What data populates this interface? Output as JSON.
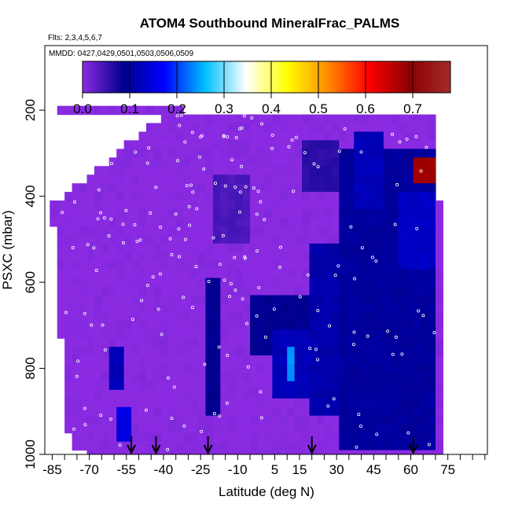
{
  "chart_data": {
    "type": "heatmap",
    "title": "ATOM4 Southbound MineralFrac_PALMS",
    "notes": [
      "Flts: 2,3,4,5,6,7",
      "MMDD: 0427,0429,0501,0503,0506,0509"
    ],
    "xlabel": "Latitude (deg N)",
    "ylabel": "PSXC (mbar)",
    "xlim": [
      -88,
      91
    ],
    "ylim": [
      1000,
      50
    ],
    "x_ticks_labeled": [
      -85,
      -70,
      -55,
      -40,
      -25,
      -10,
      5,
      15,
      30,
      45,
      60,
      75
    ],
    "x_tick_step": 5,
    "y_ticks": [
      200,
      400,
      600,
      800,
      1000
    ],
    "colorbar": {
      "min": 0.0,
      "max": 0.78,
      "ticks": [
        0.0,
        0.1,
        0.2,
        0.3,
        0.4,
        0.5,
        0.6,
        0.7
      ],
      "tick_labels": [
        "0.0",
        "0.1",
        "0.2",
        "0.3",
        "0.4",
        "0.5",
        "0.6",
        "0.7"
      ],
      "colors": [
        "#8a2be2",
        "#00008b",
        "#0000ff",
        "#00bfff",
        "#ffffff",
        "#ffff00",
        "#ff8c00",
        "#ff0000",
        "#8b0000",
        "#a52a2a"
      ]
    },
    "background_value": 0.0,
    "domain_edges": [
      {
        "p": 200,
        "x0": -84,
        "x1": -33
      },
      {
        "p": 180,
        "x0": -33,
        "x1": 70
      },
      {
        "p": 420,
        "x0": -85,
        "x1": 72
      },
      {
        "p": 600,
        "x0": -83,
        "x1": 73
      },
      {
        "p": 850,
        "x0": -80,
        "x1": 73
      },
      {
        "p": 980,
        "x0": -78,
        "x1": 72
      },
      {
        "p": 1000,
        "x0": -71,
        "x1": 72
      }
    ],
    "features": [
      {
        "x": [
          32,
          70
        ],
        "p": [
          300,
          980
        ],
        "value": 0.1
      },
      {
        "x": [
          38,
          50
        ],
        "p": [
          260,
          420
        ],
        "value": 0.12
      },
      {
        "x": [
          55,
          70
        ],
        "p": [
          400,
          560
        ],
        "value": 0.13
      },
      {
        "x": [
          20,
          32
        ],
        "p": [
          520,
          900
        ],
        "value": 0.11
      },
      {
        "x": [
          -4,
          22
        ],
        "p": [
          640,
          760
        ],
        "value": 0.09
      },
      {
        "x": [
          4,
          18
        ],
        "p": [
          720,
          860
        ],
        "value": 0.12
      },
      {
        "x": [
          9,
          14
        ],
        "p": [
          760,
          820
        ],
        "value": 0.24
      },
      {
        "x": [
          60,
          70
        ],
        "p": [
          310,
          370
        ],
        "value": 0.68
      },
      {
        "x": [
          -24,
          -17
        ],
        "p": [
          600,
          900
        ],
        "value": 0.09
      },
      {
        "x": [
          -62,
          -57
        ],
        "p": [
          760,
          850
        ],
        "value": 0.12
      },
      {
        "x": [
          -60,
          -54
        ],
        "p": [
          900,
          970
        ],
        "value": 0.15
      },
      {
        "x": [
          -20,
          -5
        ],
        "p": [
          350,
          500
        ],
        "value": 0.04
      },
      {
        "x": [
          15,
          32
        ],
        "p": [
          280,
          380
        ],
        "value": 0.06
      }
    ],
    "arrows_x": [
      -53,
      -43,
      -22,
      20,
      61
    ]
  }
}
